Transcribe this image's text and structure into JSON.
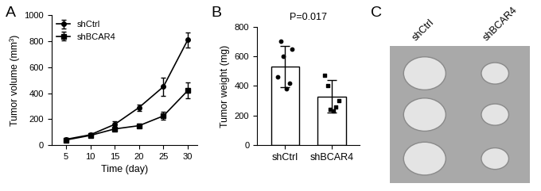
{
  "chart_data": [
    {
      "type": "line",
      "panel": "A",
      "x_label": "Time (day)",
      "y_label": "Tumor volume (mm³)",
      "x": [
        5,
        10,
        15,
        20,
        25,
        30
      ],
      "series": [
        {
          "name": "shCtrl",
          "color": "#000000",
          "marker": "circle",
          "values": [
            45,
            80,
            160,
            290,
            450,
            810
          ],
          "errors": [
            10,
            15,
            25,
            25,
            70,
            60
          ]
        },
        {
          "name": "shBCAR4",
          "color": "#000000",
          "marker": "square",
          "values": [
            40,
            75,
            125,
            150,
            225,
            420
          ],
          "errors": [
            8,
            12,
            15,
            15,
            30,
            60
          ]
        }
      ],
      "xlim": [
        2,
        32
      ],
      "xticks": [
        5,
        10,
        15,
        20,
        25,
        30
      ],
      "ylim": [
        0,
        1000
      ],
      "yticks": [
        0,
        200,
        400,
        600,
        800,
        1000
      ],
      "legend": "upper left"
    },
    {
      "type": "bar",
      "panel": "B",
      "y_label": "Tumor weight (mg)",
      "annotation": "P=0.017",
      "categories": [
        "shCtrl",
        "shBCAR4"
      ],
      "values": [
        530,
        330
      ],
      "errors": [
        140,
        110
      ],
      "points": [
        [
          460,
          700,
          600,
          380,
          420,
          650
        ],
        [
          470,
          400,
          240,
          230,
          260,
          300
        ]
      ],
      "color": "#ffffff",
      "ylim": [
        0,
        800
      ],
      "yticks": [
        0,
        200,
        400,
        600,
        800
      ]
    },
    {
      "type": "image",
      "panel": "C",
      "categories": [
        "shCtrl",
        "shBCAR4"
      ]
    }
  ]
}
